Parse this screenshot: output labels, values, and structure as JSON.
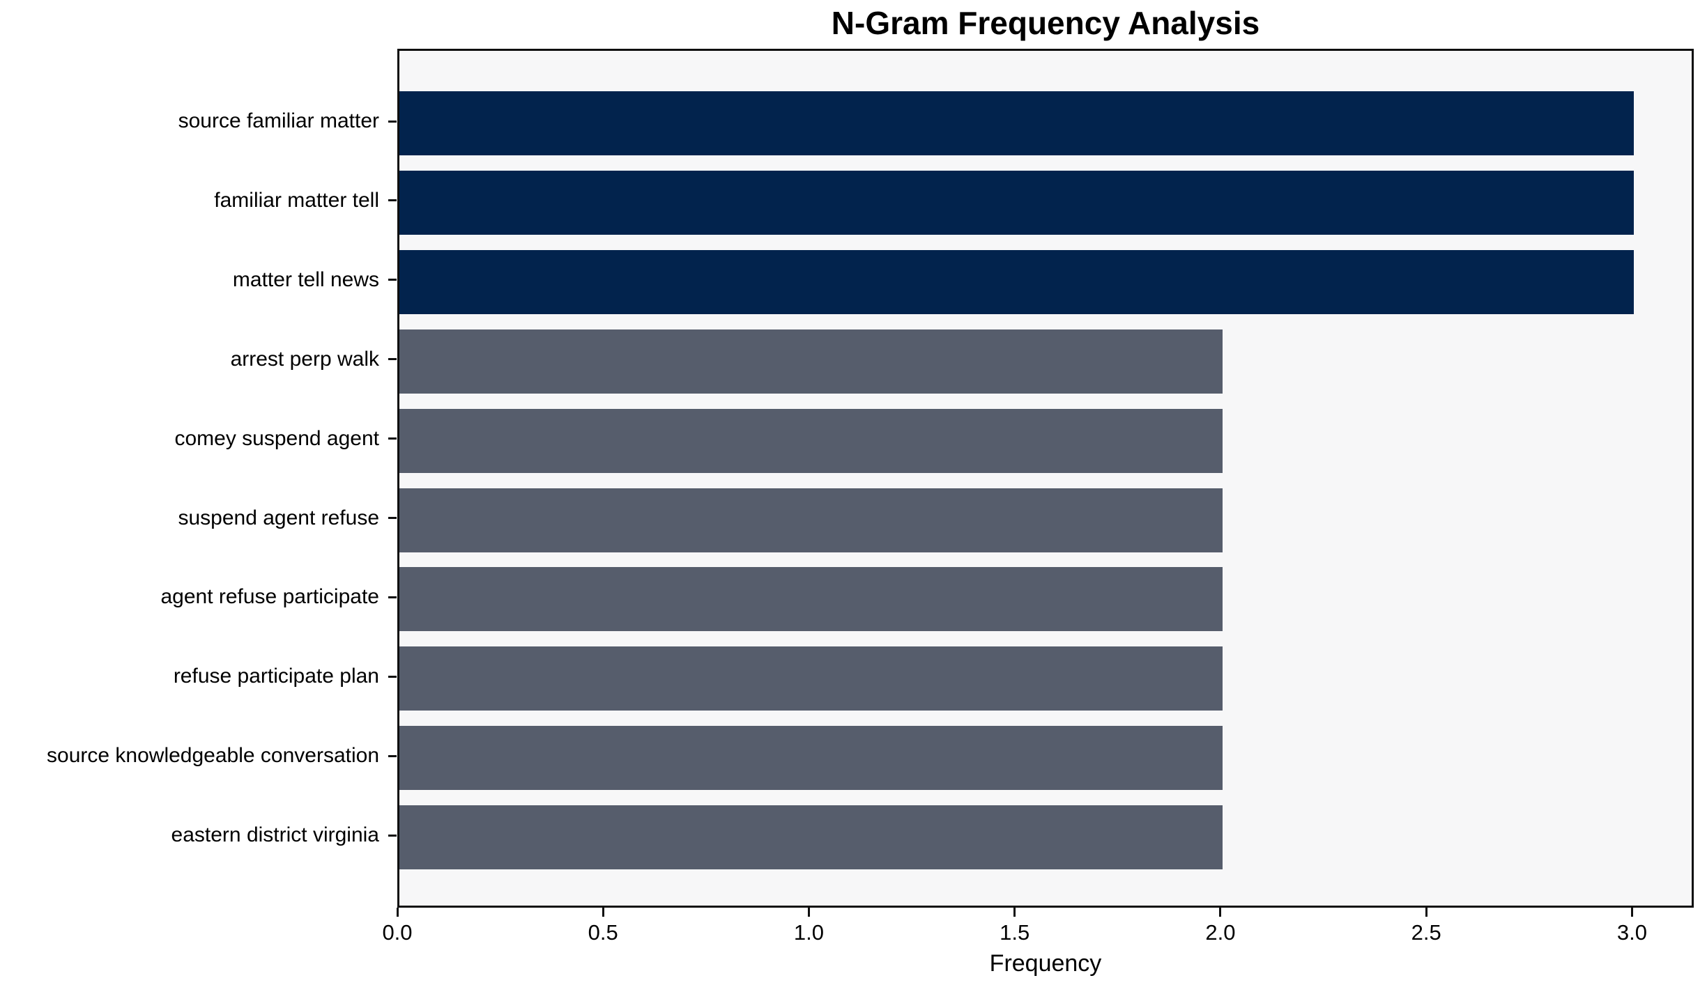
{
  "chart_data": {
    "type": "bar",
    "orientation": "horizontal",
    "title": "N-Gram Frequency Analysis",
    "xlabel": "Frequency",
    "ylabel": "",
    "categories": [
      "source familiar matter",
      "familiar matter tell",
      "matter tell news",
      "arrest perp walk",
      "comey suspend agent",
      "suspend agent refuse",
      "agent refuse participate",
      "refuse participate plan",
      "source knowledgeable conversation",
      "eastern district virginia"
    ],
    "values": [
      3,
      3,
      3,
      2,
      2,
      2,
      2,
      2,
      2,
      2
    ],
    "bar_colors": [
      "#02234d",
      "#02234d",
      "#02234d",
      "#565d6c",
      "#565d6c",
      "#565d6c",
      "#565d6c",
      "#565d6c",
      "#565d6c",
      "#565d6c"
    ],
    "highlight_color": "#02234d",
    "default_color": "#565d6c",
    "xlim": [
      0,
      3.15
    ],
    "xticks": [
      0,
      0.5,
      1,
      1.5,
      2,
      2.5,
      3
    ],
    "xtick_labels": [
      "0.0",
      "0.5",
      "1.0",
      "1.5",
      "2.0",
      "2.5",
      "3.0"
    ],
    "grid": false,
    "legend_position": "none",
    "plot_background": "#f7f7f8",
    "figure_background": "#ffffff"
  }
}
